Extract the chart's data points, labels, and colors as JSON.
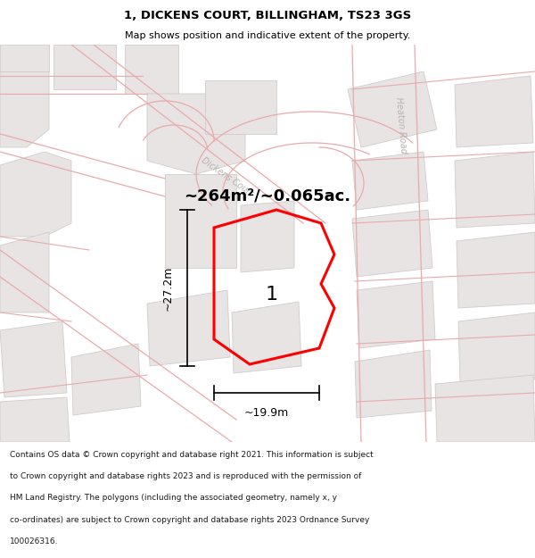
{
  "title": "1, DICKENS COURT, BILLINGHAM, TS23 3GS",
  "subtitle": "Map shows position and indicative extent of the property.",
  "area_label": "~264m²/~0.065ac.",
  "plot_number": "1",
  "dim_width": "~19.9m",
  "dim_height": "~27.2m",
  "footer_lines": [
    "Contains OS data © Crown copyright and database right 2021. This information is subject",
    "to Crown copyright and database rights 2023 and is reproduced with the permission of",
    "HM Land Registry. The polygons (including the associated geometry, namely x, y",
    "co-ordinates) are subject to Crown copyright and database rights 2023 Ordnance Survey",
    "100026316."
  ],
  "bg_color": "#ffffff",
  "map_bg": "#ffffff",
  "road_line_color": "#e8aaaa",
  "building_fill": "#e8e4e4",
  "building_edge": "#d0cccc",
  "street_label1_color": "#b8b0b0",
  "street_label2_color": "#b8b0b0"
}
